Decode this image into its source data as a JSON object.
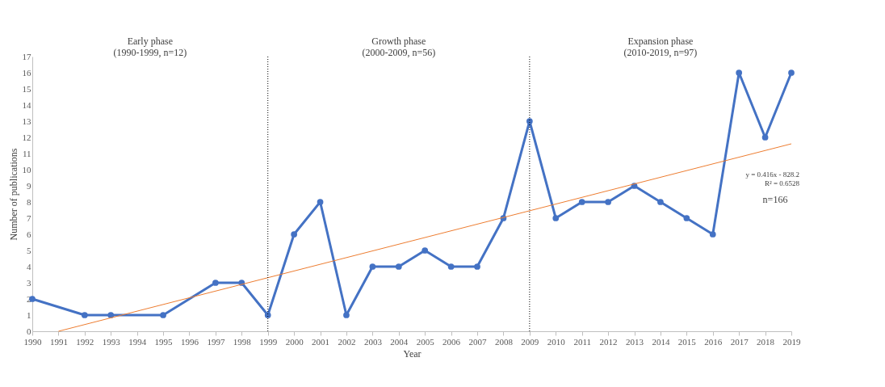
{
  "chart_data": {
    "type": "line",
    "xlabel": "Year",
    "ylabel": "Number of publications",
    "xlim": [
      1990,
      2019
    ],
    "xticks": [
      1990,
      1991,
      1992,
      1993,
      1994,
      1995,
      1996,
      1997,
      1998,
      1999,
      2000,
      2001,
      2002,
      2003,
      2004,
      2005,
      2006,
      2007,
      2008,
      2009,
      2010,
      2011,
      2012,
      2013,
      2014,
      2015,
      2016,
      2017,
      2018,
      2019
    ],
    "ylim": [
      0,
      17
    ],
    "yticks": [
      0,
      1,
      2,
      3,
      4,
      5,
      6,
      7,
      8,
      9,
      10,
      11,
      12,
      13,
      14,
      15,
      16,
      17
    ],
    "grid": false,
    "marker": "circle",
    "line_style": "solid",
    "series": [
      {
        "color": "#4472c4",
        "x": [
          1990,
          1992,
          1993,
          1995,
          1997,
          1998,
          1999,
          2000,
          2001,
          2002,
          2003,
          2004,
          2005,
          2006,
          2007,
          2008,
          2009,
          2010,
          2011,
          2012,
          2013,
          2014,
          2015,
          2016,
          2017,
          2018,
          2019
        ],
        "values": [
          2,
          1,
          1,
          1,
          3,
          3,
          1,
          6,
          8,
          1,
          4,
          4,
          5,
          4,
          4,
          7,
          13,
          7,
          8,
          8,
          9,
          8,
          7,
          6,
          16,
          12,
          16
        ]
      },
      {
        "type": "line",
        "color": "#ed7d31",
        "x": [
          1991,
          2019
        ],
        "values": [
          0,
          11.6
        ],
        "marker": "none"
      }
    ],
    "ref_lines": [
      {
        "axis": "x",
        "value": 1999,
        "color": "#000000",
        "line_style": "dotted"
      },
      {
        "axis": "x",
        "value": 2009,
        "color": "#000000",
        "line_style": "dotted"
      }
    ],
    "annotations": [
      "Early phase\n(1990-1999, n=12)",
      "Growth phase\n(2000-2009, n=56)",
      "Expansion phase\n(2010-2019, n=97)",
      "y = 0.416x - 828.2\nR² = 0.6528",
      "n=166"
    ]
  }
}
